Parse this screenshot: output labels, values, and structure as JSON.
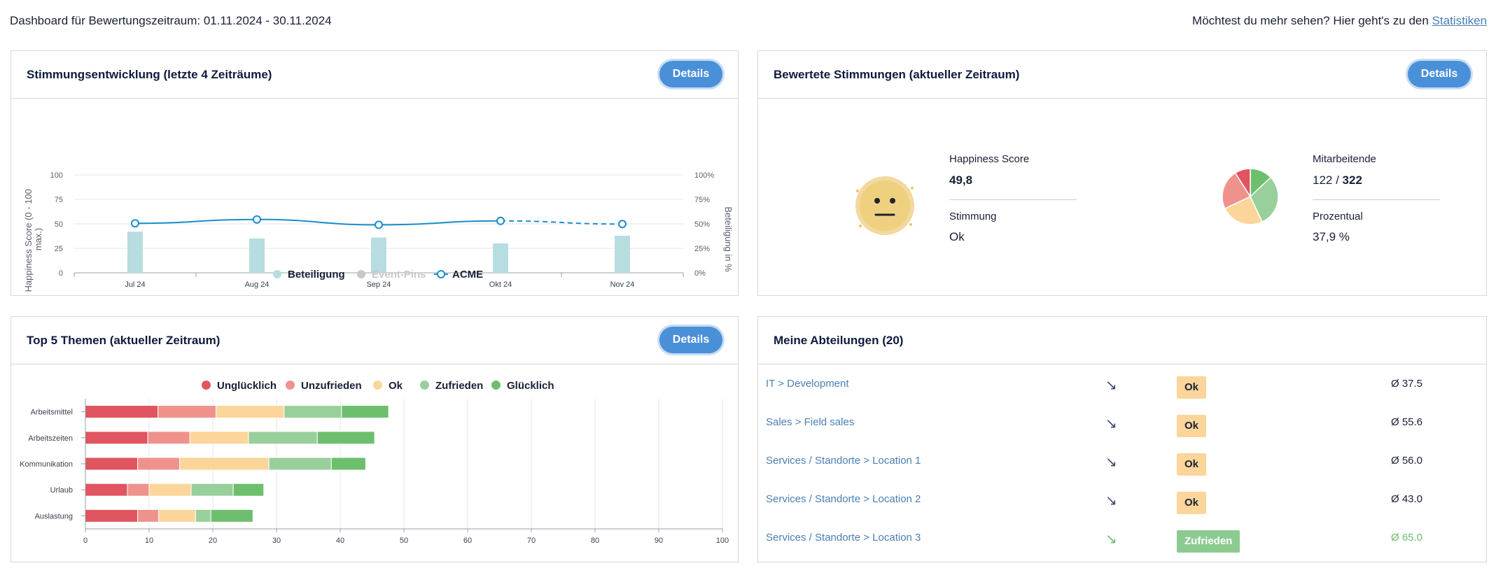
{
  "header": {
    "title": "Dashboard für Bewertungszeitraum: 01.11.2024 - 30.11.2024",
    "more_text": "Möchtest du mehr sehen? Hier geht's zu den",
    "more_link": "Statistiken"
  },
  "trend": {
    "title": "Stimmungsentwicklung (letzte 4 Zeiträume)",
    "details_label": "Details",
    "legend": {
      "participation": "Beteiligung",
      "event_pins": "Event-Pins",
      "company": "ACME"
    }
  },
  "mood": {
    "title": "Bewertete Stimmungen (aktueller Zeitraum)",
    "details_label": "Details",
    "happiness_label": "Happiness Score",
    "happiness_value": "49,8",
    "mood_label": "Stimmung",
    "mood_value": "Ok",
    "employees_label": "Mitarbeitende",
    "employees_count": "122",
    "employees_separator": " / ",
    "employees_total": "322",
    "percent_label": "Prozentual",
    "percent_value": "37,9 %",
    "pie_colors": [
      "#e05560",
      "#f0928c",
      "#fcd59a",
      "#98cf9b",
      "#6dbf6e"
    ],
    "pie_fractions": [
      0.09,
      0.23,
      0.25,
      0.3,
      0.13
    ]
  },
  "topics": {
    "title": "Top 5 Themen (aktueller Zeitraum)",
    "details_label": "Details"
  },
  "depts": {
    "title": "Meine Abteilungen (20)",
    "rows": [
      {
        "name": "IT > Development",
        "arrow": "↘",
        "badge": "Ok",
        "score": "Ø 37.5"
      },
      {
        "name": "Sales > Field sales",
        "arrow": "↘",
        "badge": "Ok",
        "score": "Ø 55.6"
      },
      {
        "name": "Services / Standorte > Location 1",
        "arrow": "↘",
        "badge": "Ok",
        "score": "Ø 56.0"
      },
      {
        "name": "Services / Standorte > Location 2",
        "arrow": "↘",
        "badge": "Ok",
        "score": "Ø 43.0"
      },
      {
        "name": "Services / Standorte > Location 3",
        "arrow": "↘",
        "badge": "Zufrieden",
        "score": "Ø 65.0"
      }
    ]
  },
  "chart_data": [
    {
      "type": "bar",
      "title": "Stimmungsentwicklung (letzte 4 Zeiträume)",
      "categories": [
        "Jul 24",
        "Aug 24",
        "Sep 24",
        "Okt 24",
        "Nov 24"
      ],
      "ylabel": "Happiness Score (0 - 100 max.)",
      "y2label": "Beteiligung in %",
      "ylim": [
        0,
        100
      ],
      "y_ticks": [
        "0",
        "25",
        "50",
        "75",
        "100"
      ],
      "y2_ticks": [
        "0%",
        "25%",
        "50%",
        "75%",
        "100%"
      ],
      "series": [
        {
          "name": "Beteiligung",
          "type": "bar",
          "axis": "right",
          "color": "#b7dde0",
          "values": [
            42,
            35,
            36,
            30,
            37.9
          ]
        },
        {
          "name": "Event-Pins",
          "type": "scatter",
          "color": "#c8c8c8",
          "values": []
        },
        {
          "name": "ACME",
          "type": "line",
          "axis": "left",
          "color": "#1a8dcc",
          "values": [
            50.5,
            54.5,
            49,
            53,
            49.8
          ],
          "dashed_from_index": 3
        }
      ],
      "legend": "bottom-center",
      "grid": true
    },
    {
      "type": "bar",
      "orientation": "horizontal",
      "stacked": true,
      "title": "Top 5 Themen (aktueller Zeitraum)",
      "categories": [
        "Arbeitsmittel",
        "Arbeitszeiten",
        "Kommunikation",
        "Urlaub",
        "Auslastung"
      ],
      "xlim": [
        0,
        100
      ],
      "x_ticks": [
        "0",
        "10",
        "20",
        "30",
        "40",
        "50",
        "60",
        "70",
        "80",
        "90",
        "100"
      ],
      "series": [
        {
          "name": "Unglücklich",
          "color": "#e05560",
          "values": [
            11.4,
            9.8,
            8.2,
            6.6,
            8.2
          ]
        },
        {
          "name": "Unzufrieden",
          "color": "#f0928c",
          "values": [
            9.1,
            6.6,
            6.6,
            3.4,
            3.3
          ]
        },
        {
          "name": "Ok",
          "color": "#fcd59a",
          "values": [
            10.7,
            9.2,
            14.0,
            6.6,
            5.8
          ]
        },
        {
          "name": "Zufrieden",
          "color": "#98cf9b",
          "values": [
            9.0,
            10.8,
            9.8,
            6.6,
            2.4
          ]
        },
        {
          "name": "Glücklich",
          "color": "#6dbf6e",
          "values": [
            7.4,
            9.0,
            5.4,
            4.8,
            6.6
          ]
        }
      ],
      "legend": "top-center",
      "grid": true
    }
  ]
}
